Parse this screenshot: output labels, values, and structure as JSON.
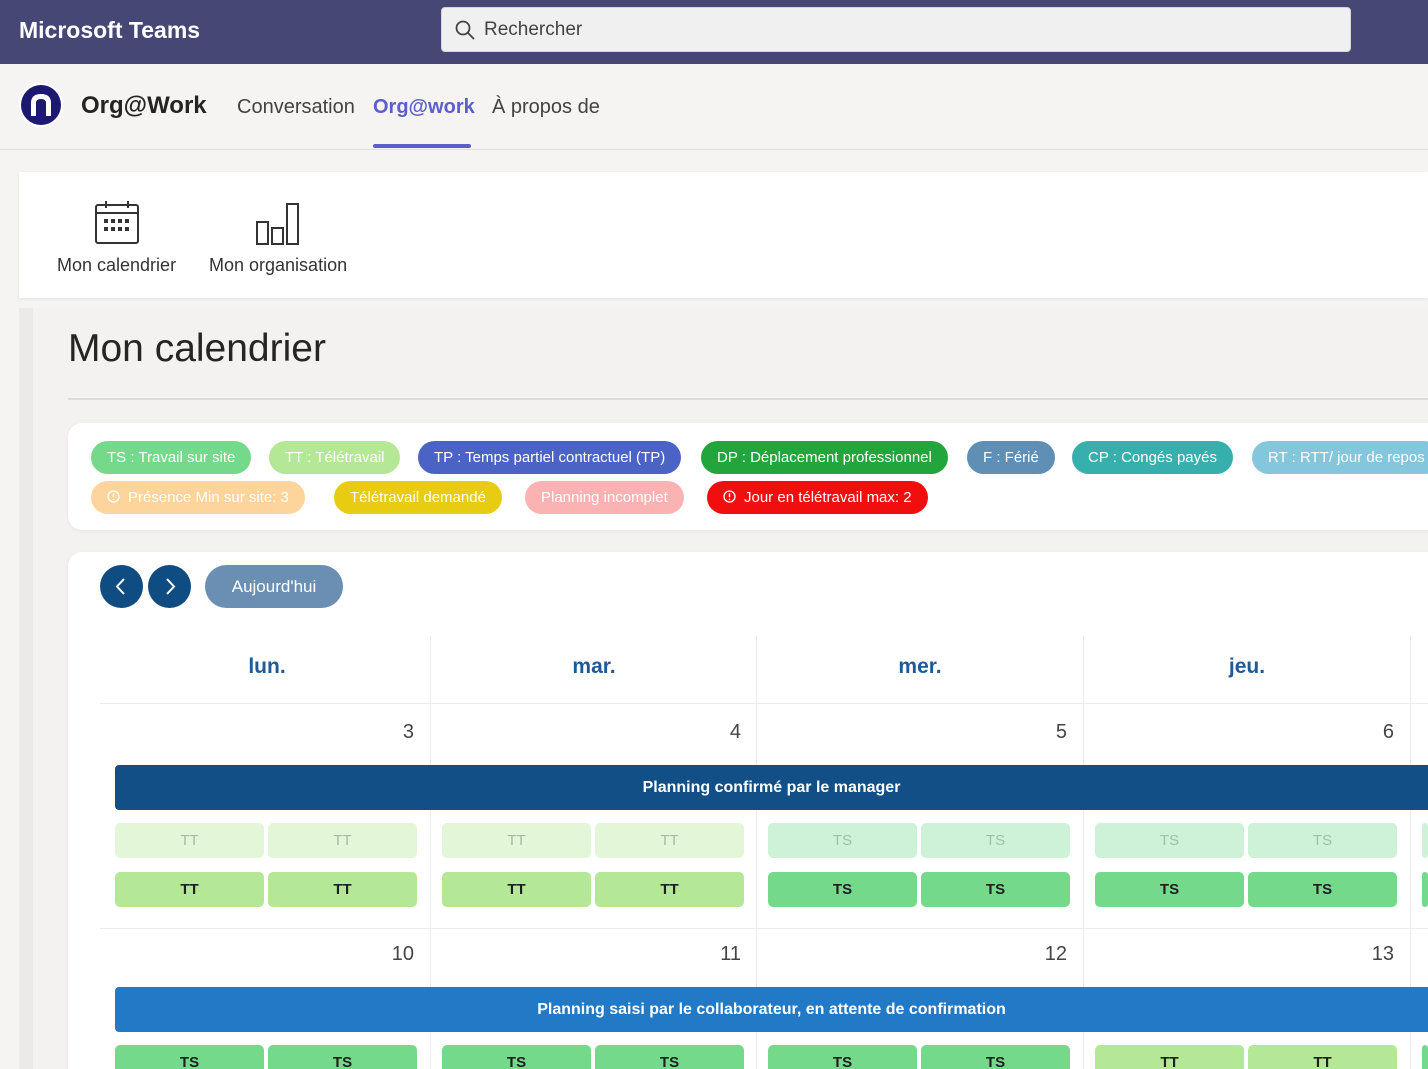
{
  "app": {
    "title": "Microsoft Teams"
  },
  "search": {
    "placeholder": "Rechercher"
  },
  "channel": {
    "app_name": "Org@Work",
    "tabs": [
      {
        "label": "Conversation",
        "active": false
      },
      {
        "label": "Org@work",
        "active": true
      },
      {
        "label": "À propos de",
        "active": false
      }
    ]
  },
  "toolnav": {
    "items": [
      {
        "label": "Mon calendrier",
        "icon": "calendar-icon"
      },
      {
        "label": "Mon organisation",
        "icon": "bar-chart-icon"
      }
    ]
  },
  "page": {
    "title": "Mon calendrier"
  },
  "legend": {
    "row1": [
      {
        "label": "TS : Travail sur site",
        "color": "#75d98c",
        "text_color": "#ffffff"
      },
      {
        "label": "TT : Télétravail",
        "color": "#b4e896",
        "text_color": "#ffffff"
      },
      {
        "label": "TP : Temps partiel contractuel (TP)",
        "color": "#4a63c4",
        "text_color": "#ffffff"
      },
      {
        "label": "DP : Déplacement professionnel",
        "color": "#22a53d",
        "text_color": "#ffffff"
      },
      {
        "label": "F : Férié",
        "color": "#5f8fb5",
        "text_color": "#ffffff"
      },
      {
        "label": "CP : Congés payés",
        "color": "#37b0ad",
        "text_color": "#ffffff"
      },
      {
        "label": "RT : RTT/ jour de repos",
        "color": "#84c7dc",
        "text_color": "#ffffff"
      }
    ],
    "row2": [
      {
        "label": "Présence Min sur site: 3",
        "color": "#fdd49b",
        "text_color": "#ffffff",
        "icon": "info-circle-icon"
      },
      {
        "label": "Télétravail demandé",
        "color": "#e8cc12",
        "text_color": "#ffffff"
      },
      {
        "label": "Planning incomplet",
        "color": "#fbb2b2",
        "text_color": "#ffffff"
      },
      {
        "label": "Jour en télétravail max: 2",
        "color": "#f20e0e",
        "text_color": "#ffffff",
        "icon": "info-circle-icon"
      }
    ]
  },
  "calendar": {
    "today_label": "Aujourd'hui",
    "days": [
      "lun.",
      "mar.",
      "mer.",
      "jeu."
    ],
    "weeks": [
      {
        "dates": [
          "3",
          "4",
          "5",
          "6"
        ],
        "banner": "Planning confirmé par le manager",
        "banner_color": "#124f86",
        "requested": [
          [
            "TT",
            "TT"
          ],
          [
            "TT",
            "TT"
          ],
          [
            "TS",
            "TS"
          ],
          [
            "TS",
            "TS"
          ]
        ],
        "confirmed": [
          [
            "TT",
            "TT"
          ],
          [
            "TT",
            "TT"
          ],
          [
            "TS",
            "TS"
          ],
          [
            "TS",
            "TS"
          ]
        ]
      },
      {
        "dates": [
          "10",
          "11",
          "12",
          "13"
        ],
        "banner": "Planning saisi par le collaborateur, en attente de confirmation",
        "banner_color": "#2279c6",
        "confirmed": [
          [
            "TS",
            "TS"
          ],
          [
            "TS",
            "TS"
          ],
          [
            "TS",
            "TS"
          ],
          [
            "TT",
            "TT"
          ]
        ]
      }
    ]
  }
}
